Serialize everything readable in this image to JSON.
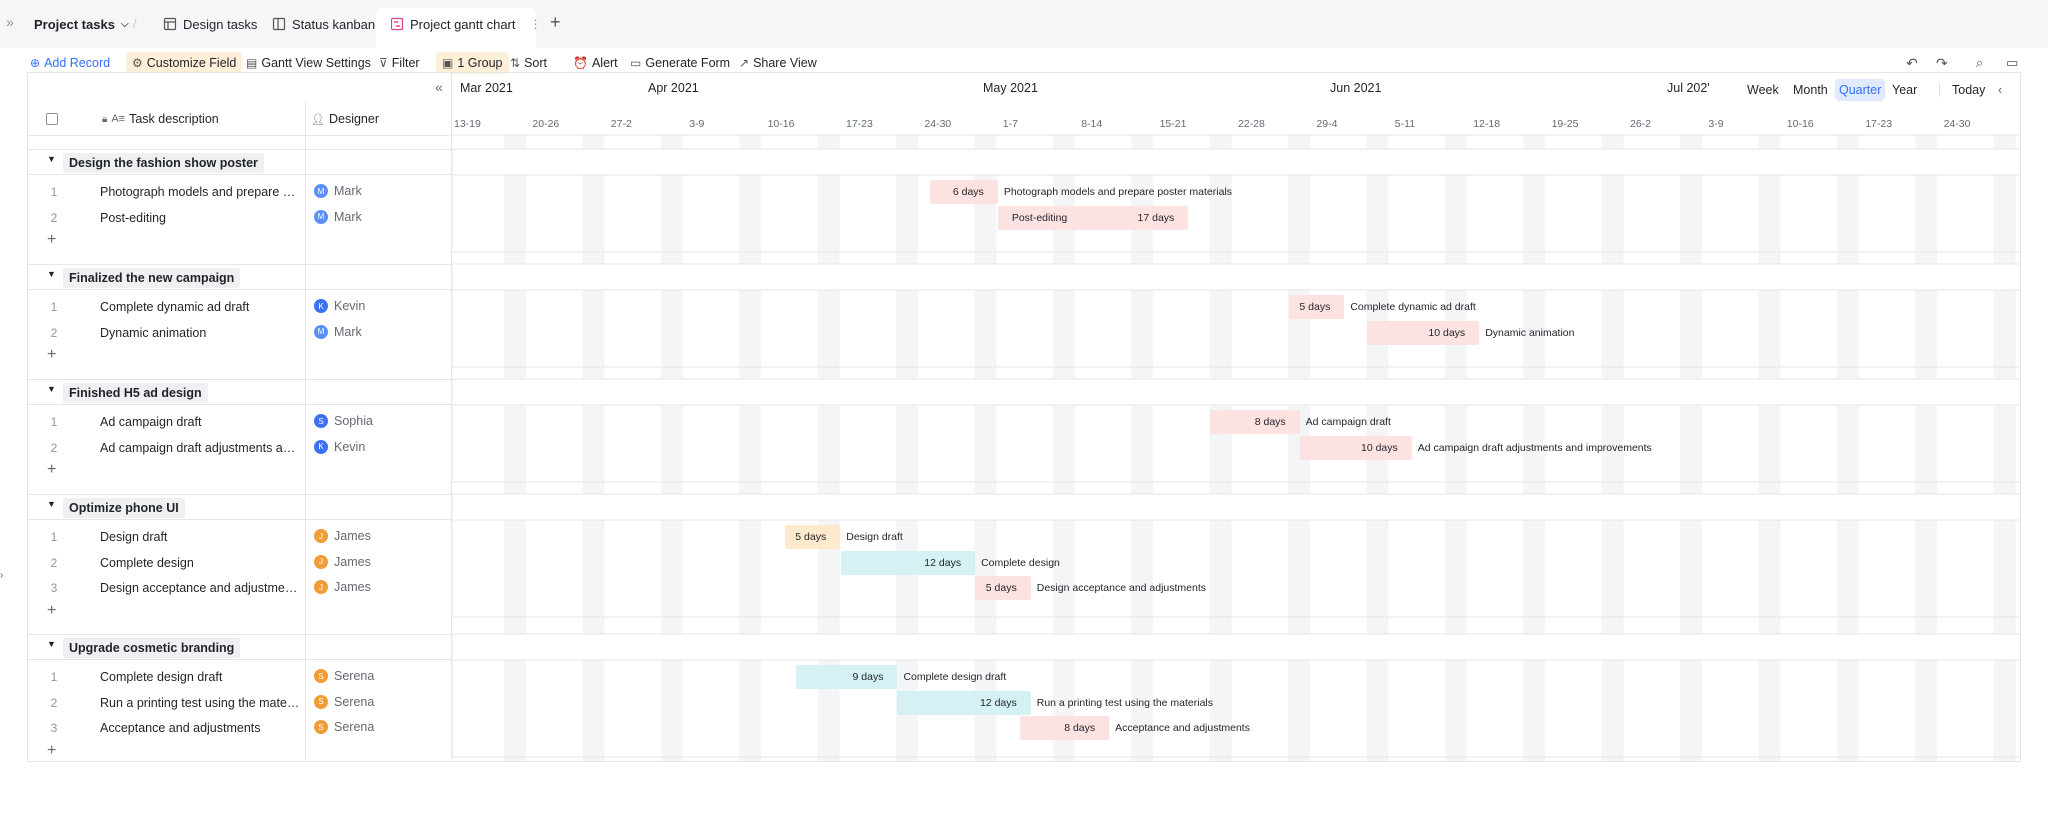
{
  "app": {
    "title": "Project tasks",
    "tabs": [
      {
        "label": "Design tasks",
        "icon": "table-icon"
      },
      {
        "label": "Status kanban",
        "icon": "kanban-icon"
      },
      {
        "label": "Project gantt chart",
        "icon": "gantt-icon",
        "active": true
      }
    ]
  },
  "toolbar": {
    "add_record": "Add Record",
    "customize_field": "Customize Field",
    "gantt_settings": "Gantt View Settings",
    "filter": "Filter",
    "group": "1 Group",
    "sort": "Sort",
    "alert": "Alert",
    "generate_form": "Generate Form",
    "share_view": "Share View"
  },
  "scale": {
    "week": "Week",
    "month": "Month",
    "quarter": "Quarter",
    "year": "Year",
    "today": "Today",
    "active": "Quarter"
  },
  "columns": {
    "task": "Task description",
    "designer": "Designer"
  },
  "timeline": {
    "months": [
      "Mar 2021",
      "Apr 2021",
      "May 2021",
      "Jun 2021",
      "Jul 202'"
    ],
    "weeks": [
      "13-19",
      "20-26",
      "27-2",
      "3-9",
      "10-16",
      "17-23",
      "24-30",
      "1-7",
      "8-14",
      "15-21",
      "22-28",
      "29-4",
      "5-11",
      "12-18",
      "19-25",
      "26-2",
      "3-9",
      "10-16",
      "17-23",
      "24-30"
    ]
  },
  "groups": [
    {
      "name": "Design the fashion show poster",
      "rows": [
        {
          "num": "1",
          "task": "Photograph models and prepare pos...",
          "designer": "Mark",
          "avatar_color": "#5b8ff9",
          "bar_duration": "6 days",
          "bar_label": "Photograph models and prepare poster materials",
          "bar_color": "#fde2e2",
          "start_week": 6.0,
          "length_weeks": 0.86
        },
        {
          "num": "2",
          "task": "Post-editing",
          "designer": "Mark",
          "avatar_color": "#5b8ff9",
          "bar_duration": "17 days",
          "bar_label": "Post-editing",
          "bar_label_inside": true,
          "bar_color": "#fde2e2",
          "start_week": 6.86,
          "length_weeks": 2.43
        }
      ]
    },
    {
      "name": "Finalized the new campaign",
      "rows": [
        {
          "num": "1",
          "task": "Complete dynamic ad draft",
          "designer": "Kevin",
          "avatar_color": "#3c72f2",
          "bar_duration": "5 days",
          "bar_label": "Complete dynamic ad draft",
          "bar_color": "#fde2e2",
          "start_week": 10.57,
          "length_weeks": 0.71
        },
        {
          "num": "2",
          "task": "Dynamic animation",
          "designer": "Mark",
          "avatar_color": "#5b8ff9",
          "bar_duration": "10 days",
          "bar_label": "Dynamic animation",
          "bar_color": "#fde2e2",
          "start_week": 11.57,
          "length_weeks": 1.43
        }
      ]
    },
    {
      "name": "Finished H5 ad design",
      "rows": [
        {
          "num": "1",
          "task": "Ad campaign draft",
          "designer": "Sophia",
          "avatar_color": "#3c72f2",
          "bar_duration": "8 days",
          "bar_label": "Ad campaign draft",
          "bar_color": "#fde2e2",
          "start_week": 9.57,
          "length_weeks": 1.14
        },
        {
          "num": "2",
          "task": "Ad campaign draft adjustments and i...",
          "designer": "Kevin",
          "avatar_color": "#3c72f2",
          "bar_duration": "10 days",
          "bar_label": "Ad campaign draft adjustments and improvements",
          "bar_color": "#fde2e2",
          "start_week": 10.71,
          "length_weeks": 1.43
        }
      ]
    },
    {
      "name": "Optimize phone UI",
      "rows": [
        {
          "num": "1",
          "task": "Design draft",
          "designer": "James",
          "avatar_color": "#f29c38",
          "bar_duration": "5 days",
          "bar_label": "Design draft",
          "bar_color": "#fde9cc",
          "start_week": 4.14,
          "length_weeks": 0.71
        },
        {
          "num": "2",
          "task": "Complete design",
          "designer": "James",
          "avatar_color": "#f29c38",
          "bar_duration": "12 days",
          "bar_label": "Complete design",
          "bar_color": "#d5f1f3",
          "start_week": 4.86,
          "length_weeks": 1.71
        },
        {
          "num": "3",
          "task": "Design acceptance and adjustments",
          "designer": "James",
          "avatar_color": "#f29c38",
          "bar_duration": "5 days",
          "bar_label": "Design acceptance and adjustments",
          "bar_color": "#fde2e2",
          "start_week": 6.57,
          "length_weeks": 0.71
        }
      ]
    },
    {
      "name": "Upgrade cosmetic branding",
      "rows": [
        {
          "num": "1",
          "task": "Complete design draft",
          "designer": "Serena",
          "avatar_color": "#f29c38",
          "bar_duration": "9 days",
          "bar_label": "Complete design draft",
          "bar_color": "#d5f1f3",
          "start_week": 4.29,
          "length_weeks": 1.29
        },
        {
          "num": "2",
          "task": "Run a printing test using the materials",
          "designer": "Serena",
          "avatar_color": "#f29c38",
          "bar_duration": "12 days",
          "bar_label": "Run a printing test using the materials",
          "bar_color": "#d5f1f3",
          "start_week": 5.57,
          "length_weeks": 1.71
        },
        {
          "num": "3",
          "task": "Acceptance and adjustments",
          "designer": "Serena",
          "avatar_color": "#f29c38",
          "bar_duration": "8 days",
          "bar_label": "Acceptance and adjustments",
          "bar_color": "#fde2e2",
          "start_week": 7.14,
          "length_weeks": 1.14
        }
      ]
    }
  ]
}
